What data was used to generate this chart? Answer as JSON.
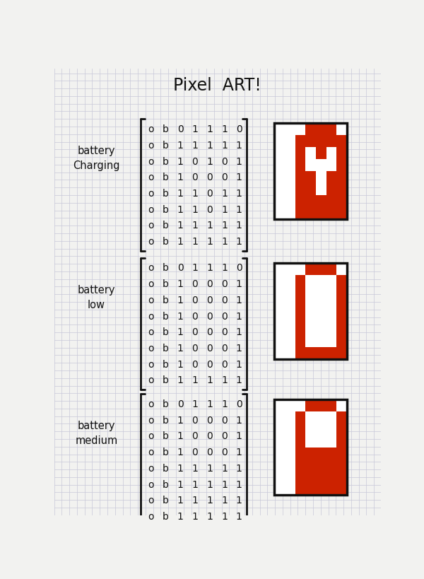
{
  "title": "Pixel  ART!",
  "bg_color": "#f2f2f0",
  "grid_color": "#c8c8d8",
  "red": "#cc2200",
  "white": "#ffffff",
  "black": "#111111",
  "sections": [
    {
      "label": "battery\nCharging",
      "rows": [
        [
          0,
          0,
          0,
          1,
          1,
          1,
          0
        ],
        [
          0,
          0,
          1,
          1,
          1,
          1,
          1
        ],
        [
          0,
          0,
          1,
          0,
          1,
          0,
          1
        ],
        [
          0,
          0,
          1,
          0,
          0,
          0,
          1
        ],
        [
          0,
          0,
          1,
          1,
          0,
          1,
          1
        ],
        [
          0,
          0,
          1,
          1,
          0,
          1,
          1
        ],
        [
          0,
          0,
          1,
          1,
          1,
          1,
          1
        ],
        [
          0,
          0,
          1,
          1,
          1,
          1,
          1
        ]
      ]
    },
    {
      "label": "battery\nlow",
      "rows": [
        [
          0,
          0,
          0,
          1,
          1,
          1,
          0
        ],
        [
          0,
          0,
          1,
          0,
          0,
          0,
          1
        ],
        [
          0,
          0,
          1,
          0,
          0,
          0,
          1
        ],
        [
          0,
          0,
          1,
          0,
          0,
          0,
          1
        ],
        [
          0,
          0,
          1,
          0,
          0,
          0,
          1
        ],
        [
          0,
          0,
          1,
          0,
          0,
          0,
          1
        ],
        [
          0,
          0,
          1,
          0,
          0,
          0,
          1
        ],
        [
          0,
          0,
          1,
          1,
          1,
          1,
          1
        ]
      ]
    },
    {
      "label": "battery\nmedium",
      "rows": [
        [
          0,
          0,
          0,
          1,
          1,
          1,
          0
        ],
        [
          0,
          0,
          1,
          0,
          0,
          0,
          1
        ],
        [
          0,
          0,
          1,
          0,
          0,
          0,
          1
        ],
        [
          0,
          0,
          1,
          0,
          0,
          0,
          1
        ],
        [
          0,
          0,
          1,
          1,
          1,
          1,
          1
        ],
        [
          0,
          0,
          1,
          1,
          1,
          1,
          1
        ],
        [
          0,
          0,
          1,
          1,
          1,
          1,
          1
        ],
        [
          0,
          0,
          1,
          1,
          1,
          1,
          1
        ]
      ]
    }
  ]
}
